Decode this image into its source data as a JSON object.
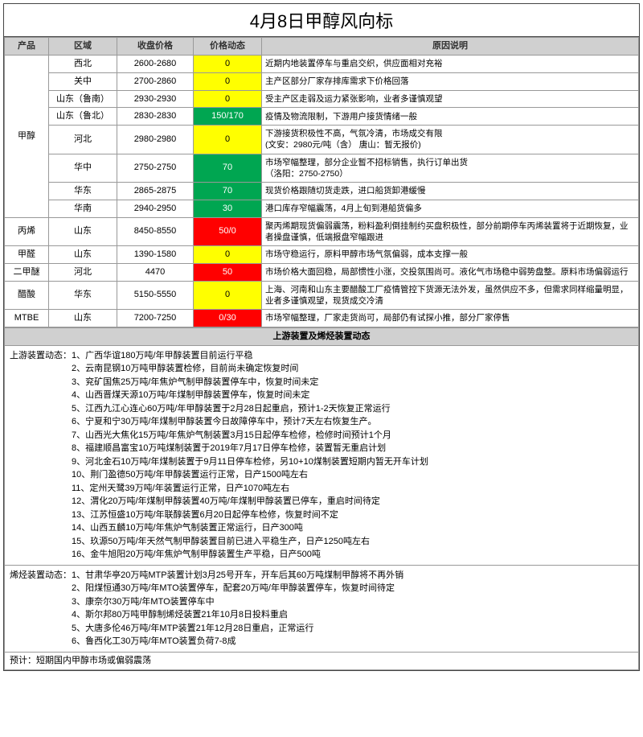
{
  "title": "4月8日甲醇风向标",
  "headers": {
    "product": "产品",
    "region": "区域",
    "close": "收盘价格",
    "dyn": "价格动态",
    "reason": "原因说明"
  },
  "colors": {
    "yellow": "#ffff00",
    "green": "#00a651",
    "red": "#ff0000",
    "header_bg": "#d0d0d0"
  },
  "rows": [
    {
      "product": "甲醇",
      "region": "西北",
      "close": "2600-2680",
      "dyn": "0",
      "dyn_cls": "yellow",
      "reason": "近期内地装置停车与重启交织，供应面相对充裕"
    },
    {
      "product": "甲醇",
      "region": "关中",
      "close": "2700-2860",
      "dyn": "0",
      "dyn_cls": "yellow",
      "reason": "主产区部分厂家存排库需求下价格回落"
    },
    {
      "product": "甲醇",
      "region": "山东（鲁南）",
      "close": "2930-2930",
      "dyn": "0",
      "dyn_cls": "yellow",
      "reason": "受主产区走弱及运力紧张影响，业者多谨慎观望"
    },
    {
      "product": "甲醇",
      "region": "山东（鲁北）",
      "close": "2830-2830",
      "dyn": "150/170",
      "dyn_cls": "green",
      "reason": "疫情及物流限制，下游用户接货情绪一般"
    },
    {
      "product": "甲醇",
      "region": "河北",
      "close": "2980-2980",
      "dyn": "0",
      "dyn_cls": "yellow",
      "reason": "下游接货积极性不高，气氛冷清，市场成交有限\n(文安：2980元/吨（含） 唐山：暂无报价)"
    },
    {
      "product": "甲醇",
      "region": "华中",
      "close": "2750-2750",
      "dyn": "70",
      "dyn_cls": "green",
      "reason": "市场窄幅整理，部分企业暂不招标销售，执行订单出货\n（洛阳：2750-2750）"
    },
    {
      "product": "甲醇",
      "region": "华东",
      "close": "2865-2875",
      "dyn": "70",
      "dyn_cls": "green",
      "reason": "现货价格跟随切货走跌，进口船货卸港缓慢"
    },
    {
      "product": "甲醇",
      "region": "华南",
      "close": "2940-2950",
      "dyn": "30",
      "dyn_cls": "green",
      "reason": "港口库存窄幅震荡，4月上旬到港船货偏多"
    },
    {
      "product": "丙烯",
      "region": "山东",
      "close": "8450-8550",
      "dyn": "50/0",
      "dyn_cls": "red",
      "reason": "聚丙烯期现货偏弱震荡，粉料盈利倒挂制约买盘积极性，部分前期停车丙烯装置将于近期恢复，业者操盘谨慎，低端报盘窄幅跟进"
    },
    {
      "product": "甲醛",
      "region": "山东",
      "close": "1390-1580",
      "dyn": "0",
      "dyn_cls": "yellow",
      "reason": "市场守稳运行，原料甲醇市场气氛偏弱，成本支撑一般"
    },
    {
      "product": "二甲醚",
      "region": "河北",
      "close": "4470",
      "dyn": "50",
      "dyn_cls": "red",
      "reason": "市场价格大面回稳，局部惯性小涨，交投氛围尚可。液化气市场稳中弱势盘整。原料市场偏弱运行"
    },
    {
      "product": "醋酸",
      "region": "华东",
      "close": "5150-5550",
      "dyn": "0",
      "dyn_cls": "yellow",
      "reason": "上海、河南和山东主要醋酸工厂疫情管控下货源无法外发，虽然供应不多，但需求同样缩量明显，业者多谨慎观望，现货成交冷清"
    },
    {
      "product": "MTBE",
      "region": "山东",
      "close": "7200-7250",
      "dyn": "0/30",
      "dyn_cls": "red",
      "reason": "市场窄幅整理，厂家走货尚可，局部仍有试探小推，部分厂家停售"
    }
  ],
  "section2_title": "上游装置及烯烃装置动态",
  "upstream_label": "上游装置动态：",
  "upstream_items": [
    "1、广西华谊180万吨/年甲醇装置目前运行平稳",
    "2、云南昆钢10万吨甲醇装置检修，目前尚未确定恢复时间",
    "3、兖矿国焦25万吨/年焦炉气制甲醇装置停车中，恢复时间未定",
    "4、山西晋煤天源10万吨/年煤制甲醇装置停车，恢复时间未定",
    "5、江西九江心连心60万吨/年甲醇装置于2月28日起重启，预计1-2天恢复正常运行",
    "6、宁夏和宁30万吨/年煤制甲醇装置今日故障停车中，预计7天左右恢复生产。",
    "7、山西光大焦化15万吨/年焦炉气制装置3月15日起停车检修，检修时间预计1个月",
    "8、福建顺昌富宝10万吨煤制装置于2019年7月17日停车检修，装置暂无重启计划",
    "9、河北金石10万吨/年煤制装置于9月11日停车检修，另10+10煤制装置短期内暂无开车计划",
    "10、荆门盈德50万吨/年甲醇装置运行正常，日产1500吨左右",
    "11、定州天鹭39万吨/年装置运行正常，日产1070吨左右",
    "12、渭化20万吨/年煤制甲醇装置40万吨/年煤制甲醇装置已停车，重启时间待定",
    "13、江苏恒盛10万吨/年联醇装置6月20日起停车检修，恢复时间不定",
    "14、山西五麟10万吨/年焦炉气制装置正常运行，日产300吨",
    "15、玖源50万吨/年天然气制甲醇装置目前已进入平稳生产，日产1250吨左右",
    "16、金牛旭阳20万吨/年焦炉气制甲醇装置生产平稳，日产500吨"
  ],
  "olefin_label": "烯烃装置动态：",
  "olefin_items": [
    "1、甘肃华亭20万吨MTP装置计划3月25号开车，开车后其60万吨煤制甲醇将不再外销",
    "2、阳煤恒通30万吨/年MTO装置停车，配套20万吨/年甲醇装置停车，恢复时间待定",
    "3、康奈尔30万吨/年MTO装置停车中",
    "4、斯尔邦80万吨甲醇制烯烃装置21年10月8日投料重启",
    "5、大唐多伦46万吨/年MTP装置21年12月28日重启，正常运行",
    "6、鲁西化工30万吨/年MTO装置负荷7-8成"
  ],
  "forecast_label": "预计：",
  "forecast_text": "短期国内甲醇市场或偏弱震荡"
}
